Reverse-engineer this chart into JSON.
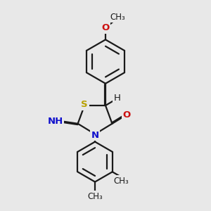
{
  "bg_color": "#e8e8e8",
  "bond_color": "#1a1a1a",
  "bond_lw": 1.6,
  "dbo": 0.055,
  "S_color": "#b8a000",
  "N_color": "#1010cc",
  "O_color": "#cc1010",
  "C_color": "#1a1a1a",
  "fs": 9.5,
  "fs_small": 8.5,
  "xlim": [
    0,
    10
  ],
  "ylim": [
    0,
    11
  ]
}
